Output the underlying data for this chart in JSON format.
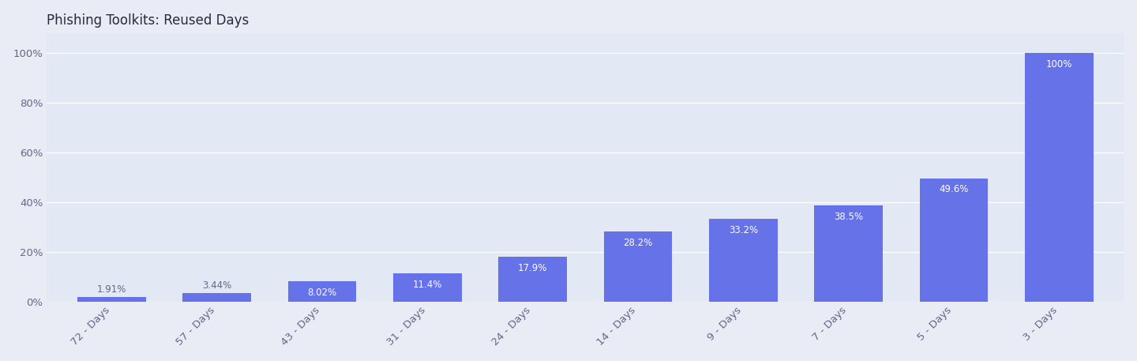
{
  "title": "Phishing Toolkits: Reused Days",
  "categories": [
    "72 - Days",
    "57 - Days",
    "43 - Days",
    "31 - Days",
    "24 - Days",
    "14 - Days",
    "9 - Days",
    "7 - Days",
    "5 - Days",
    "3 - Days"
  ],
  "values": [
    1.91,
    3.44,
    8.02,
    11.4,
    17.9,
    28.2,
    33.2,
    38.5,
    49.6,
    100
  ],
  "labels": [
    "1.91%",
    "3.44%",
    "8.02%",
    "11.4%",
    "17.9%",
    "28.2%",
    "33.2%",
    "38.5%",
    "49.6%",
    "100%"
  ],
  "bar_color": "#6672e8",
  "background_color": "#eaecf5",
  "plot_bg_color": "#e2e8f4",
  "title_color": "#2a2a3e",
  "label_color_inside": "#ffffff",
  "label_color_outside": "#666688",
  "ylim": [
    0,
    108
  ],
  "yticks": [
    0,
    20,
    40,
    60,
    80,
    100
  ],
  "ytick_labels": [
    "0%",
    "20%",
    "40%",
    "60%",
    "80%",
    "100%"
  ],
  "title_fontsize": 12,
  "tick_fontsize": 9.5,
  "label_fontsize": 8.5,
  "figsize": [
    14.4,
    4.57
  ],
  "dpi": 100
}
